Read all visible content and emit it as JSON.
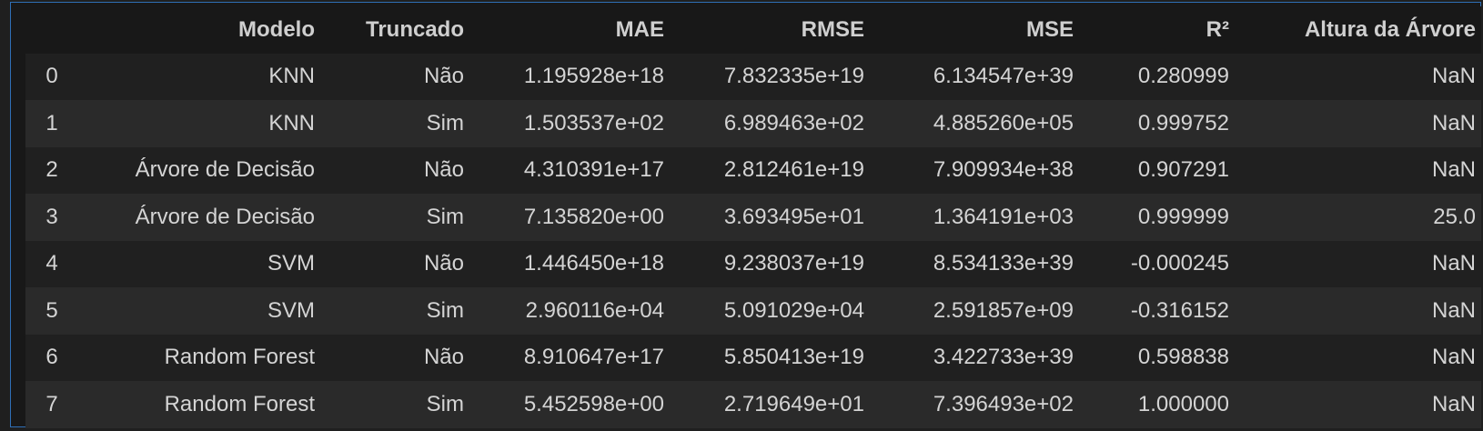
{
  "table": {
    "columns": [
      "",
      "Modelo",
      "Truncado",
      "MAE",
      "RMSE",
      "MSE",
      "R²",
      "Altura da Árvore"
    ],
    "rows": [
      [
        "0",
        "KNN",
        "Não",
        "1.195928e+18",
        "7.832335e+19",
        "6.134547e+39",
        "0.280999",
        "NaN"
      ],
      [
        "1",
        "KNN",
        "Sim",
        "1.503537e+02",
        "6.989463e+02",
        "4.885260e+05",
        "0.999752",
        "NaN"
      ],
      [
        "2",
        "Árvore de Decisão",
        "Não",
        "4.310391e+17",
        "2.812461e+19",
        "7.909934e+38",
        "0.907291",
        "NaN"
      ],
      [
        "3",
        "Árvore de Decisão",
        "Sim",
        "7.135820e+00",
        "3.693495e+01",
        "1.364191e+03",
        "0.999999",
        "25.0"
      ],
      [
        "4",
        "SVM",
        "Não",
        "1.446450e+18",
        "9.238037e+19",
        "8.534133e+39",
        "-0.000245",
        "NaN"
      ],
      [
        "5",
        "SVM",
        "Sim",
        "2.960116e+04",
        "5.091029e+04",
        "2.591857e+09",
        "-0.316152",
        "NaN"
      ],
      [
        "6",
        "Random Forest",
        "Não",
        "8.910647e+17",
        "5.850413e+19",
        "3.422733e+39",
        "0.598838",
        "NaN"
      ],
      [
        "7",
        "Random Forest",
        "Sim",
        "5.452598e+00",
        "2.719649e+01",
        "7.396493e+02",
        "1.000000",
        "NaN"
      ]
    ]
  },
  "colors": {
    "background": "#181818",
    "row_even": "#202020",
    "row_odd": "#2a2a2a",
    "border_accent": "#2f6fb6",
    "text": "#d4d4d4"
  }
}
